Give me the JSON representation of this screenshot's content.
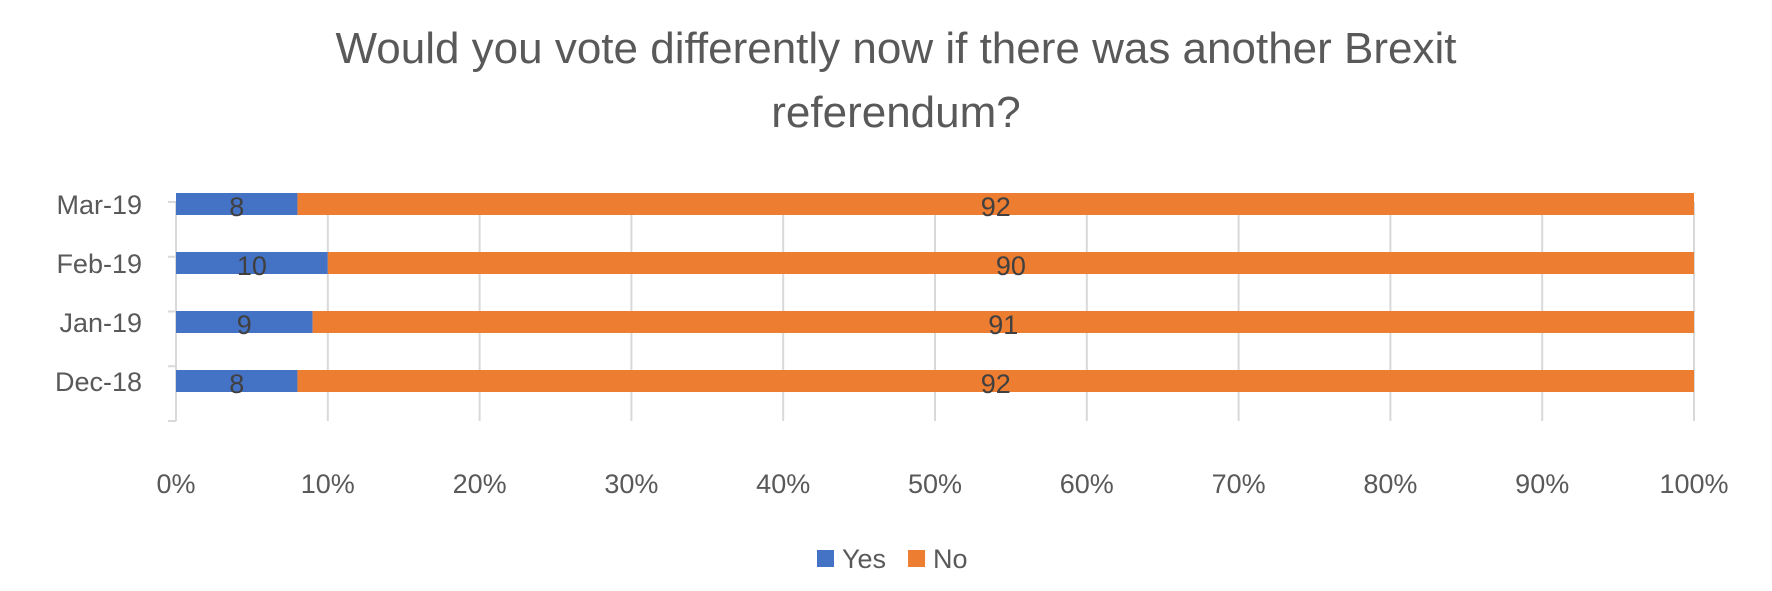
{
  "chart_data": {
    "type": "bar",
    "orientation": "horizontal",
    "stacked": "percent",
    "title": "Would you vote differently now if there was another Brexit referendum?",
    "title_lines": [
      "Would you vote differently now if there was another Brexit",
      "referendum?"
    ],
    "categories": [
      "Mar-19",
      "Feb-19",
      "Jan-19",
      "Dec-18"
    ],
    "series": [
      {
        "name": "Yes",
        "color": "#4472C4",
        "values": [
          8,
          10,
          9,
          8
        ]
      },
      {
        "name": "No",
        "color": "#ED7D31",
        "values": [
          92,
          90,
          91,
          92
        ]
      }
    ],
    "xlim": [
      0,
      100
    ],
    "x_ticks": [
      "0%",
      "10%",
      "20%",
      "30%",
      "40%",
      "50%",
      "60%",
      "70%",
      "80%",
      "90%",
      "100%"
    ],
    "grid": true,
    "legend_position": "bottom",
    "data_labels": true
  }
}
